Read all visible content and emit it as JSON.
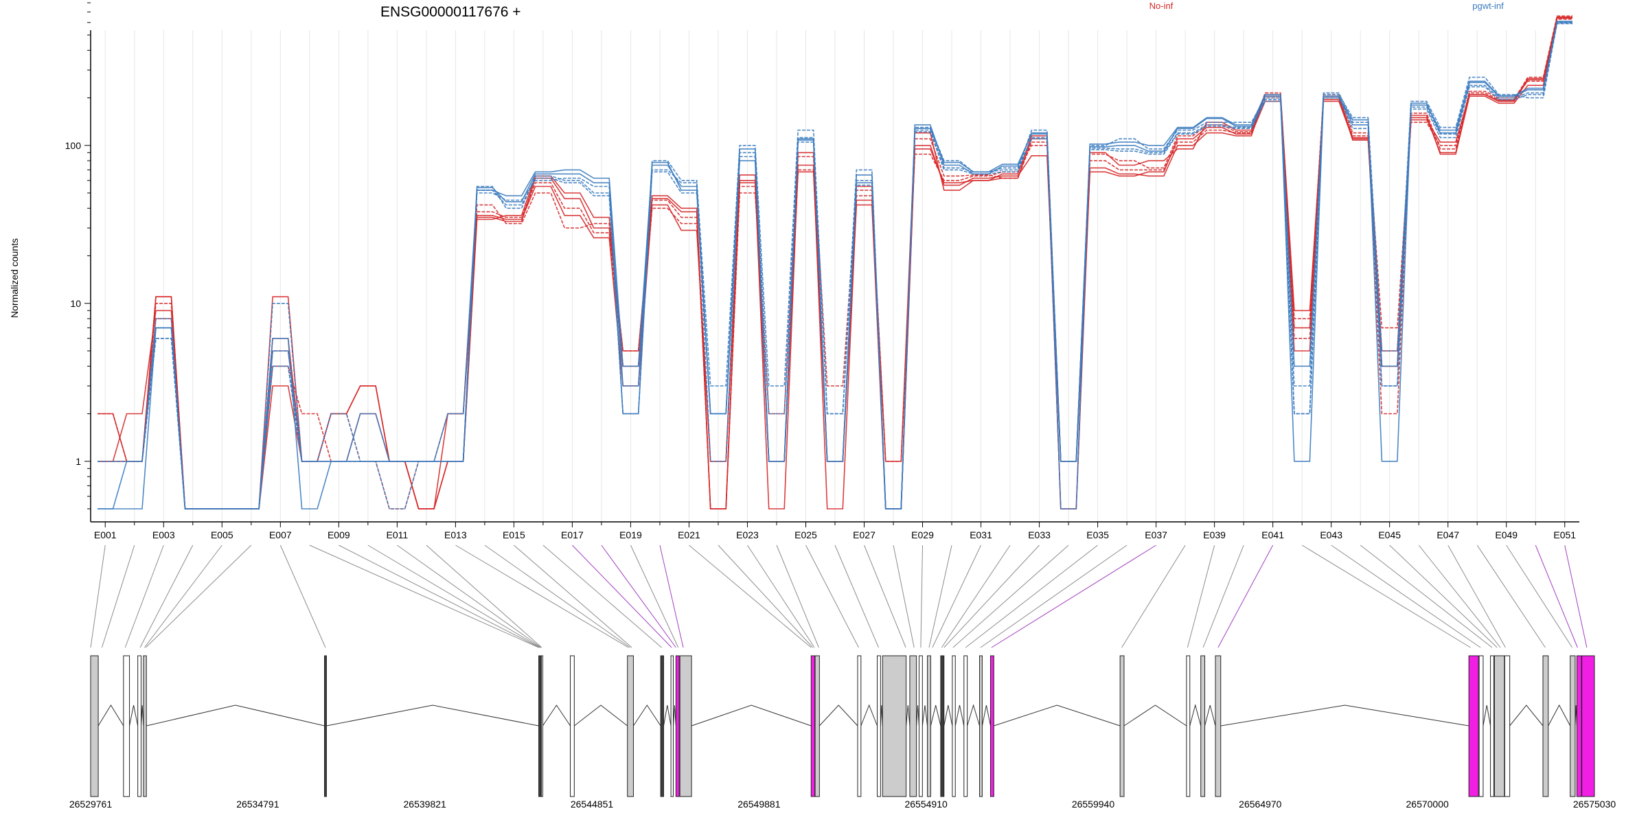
{
  "chart_data": {
    "type": "line",
    "title": "ENSG00000117676 +",
    "ylabel": "Normalized counts",
    "xlabel": "",
    "y_scale": "log",
    "ylim": [
      0.5,
      800
    ],
    "y_ticks": [
      1,
      10,
      100
    ],
    "y_tick_labels": [
      "1",
      "10",
      "100"
    ],
    "legend_position": "top",
    "grid": "vertical light lines at each exon",
    "exons": [
      "E001",
      "E002",
      "E003",
      "E004",
      "E005",
      "E006",
      "E007",
      "E008",
      "E009",
      "E010",
      "E011",
      "E012",
      "E013",
      "E014",
      "E015",
      "E016",
      "E017",
      "E018",
      "E019",
      "E020",
      "E021",
      "E022",
      "E023",
      "E024",
      "E025",
      "E026",
      "E027",
      "E028",
      "E029",
      "E030",
      "E031",
      "E032",
      "E033",
      "E034",
      "E035",
      "E036",
      "E037",
      "E038",
      "E039",
      "E040",
      "E041",
      "E042",
      "E043",
      "E044",
      "E045",
      "E046",
      "E047",
      "E048",
      "E049",
      "E050",
      "E051"
    ],
    "x_tick_labels": [
      "E001",
      "E003",
      "E005",
      "E007",
      "E009",
      "E011",
      "E013",
      "E015",
      "E017",
      "E019",
      "E021",
      "E023",
      "E025",
      "E027",
      "E029",
      "E031",
      "E033",
      "E035",
      "E037",
      "E039",
      "E041",
      "E043",
      "E045",
      "E047",
      "E049",
      "E051"
    ],
    "groups": [
      {
        "name": "No-inf",
        "color": "#d62728"
      },
      {
        "name": "pgwt-inf",
        "color": "#3a7bbf"
      }
    ],
    "series": [
      {
        "group": "No-inf",
        "values": [
          2,
          1,
          11,
          0.5,
          0.5,
          0.5,
          11,
          1,
          2,
          3,
          1,
          0.5,
          2,
          35,
          33,
          62,
          46,
          30,
          5,
          46,
          38,
          0.5,
          60,
          0.5,
          75,
          0.5,
          45,
          1,
          120,
          52,
          60,
          62,
          110,
          0.5,
          72,
          66,
          64,
          100,
          120,
          115,
          210,
          9,
          190,
          110,
          4,
          150,
          90,
          210,
          190,
          260,
          640
        ]
      },
      {
        "group": "No-inf",
        "values": [
          1,
          1,
          10,
          0.5,
          0.5,
          0.5,
          4,
          2,
          1,
          1,
          1,
          1,
          1,
          38,
          35,
          58,
          40,
          28,
          4,
          40,
          32,
          1,
          55,
          1,
          70,
          1,
          48,
          1,
          88,
          60,
          64,
          68,
          100,
          1,
          80,
          70,
          70,
          105,
          125,
          120,
          200,
          6,
          200,
          115,
          7,
          140,
          100,
          215,
          195,
          270,
          660
        ]
      },
      {
        "group": "No-inf",
        "values": [
          1,
          2,
          9,
          0.5,
          0.5,
          0.5,
          3,
          1,
          1,
          2,
          1,
          0.5,
          1,
          36,
          34,
          55,
          36,
          26,
          3,
          42,
          29,
          1,
          65,
          1,
          68,
          1,
          42,
          0.5,
          100,
          56,
          62,
          64,
          86,
          1,
          68,
          64,
          68,
          110,
          130,
          118,
          190,
          5,
          205,
          108,
          4,
          155,
          88,
          205,
          185,
          240,
          650
        ]
      },
      {
        "group": "No-inf",
        "values": [
          2,
          1,
          8,
          0.5,
          0.5,
          0.5,
          5,
          1,
          2,
          1,
          0.5,
          1,
          2,
          42,
          32,
          50,
          30,
          32,
          5,
          45,
          35,
          0.5,
          50,
          2,
          85,
          3,
          52,
          0.5,
          110,
          64,
          65,
          62,
          105,
          0.5,
          88,
          80,
          72,
          115,
          135,
          122,
          215,
          8,
          210,
          120,
          2,
          160,
          95,
          220,
          200,
          255,
          630
        ]
      },
      {
        "group": "No-inf",
        "values": [
          1,
          1,
          11,
          0.5,
          0.5,
          0.5,
          6,
          1,
          2,
          3,
          1,
          0.5,
          1,
          34,
          36,
          64,
          50,
          35,
          4,
          48,
          40,
          0.5,
          58,
          1,
          90,
          1,
          55,
          0.5,
          95,
          58,
          60,
          66,
          115,
          1,
          90,
          75,
          80,
          95,
          140,
          125,
          205,
          7,
          195,
          112,
          5,
          145,
          105,
          210,
          192,
          265,
          640
        ]
      },
      {
        "group": "pgwt-inf",
        "values": [
          1,
          1,
          8,
          0.5,
          0.5,
          0.5,
          10,
          1,
          1,
          1,
          1,
          1,
          1,
          55,
          40,
          64,
          60,
          50,
          2,
          80,
          60,
          3,
          100,
          3,
          125,
          2,
          70,
          0.5,
          130,
          80,
          68,
          70,
          125,
          1,
          100,
          110,
          95,
          125,
          140,
          140,
          200,
          2,
          210,
          150,
          5,
          190,
          130,
          270,
          210,
          200,
          600
        ]
      },
      {
        "group": "pgwt-inf",
        "values": [
          0.5,
          0.5,
          7,
          0.5,
          0.5,
          0.5,
          6,
          0.5,
          1,
          2,
          1,
          1,
          2,
          52,
          48,
          68,
          70,
          62,
          4,
          75,
          55,
          2,
          95,
          1,
          110,
          1,
          65,
          0.5,
          135,
          75,
          66,
          74,
          120,
          0.5,
          102,
          105,
          100,
          130,
          150,
          135,
          210,
          1,
          200,
          145,
          1,
          180,
          125,
          250,
          205,
          225,
          610
        ]
      },
      {
        "group": "pgwt-inf",
        "values": [
          1,
          1,
          6,
          0.5,
          0.5,
          0.5,
          4,
          1,
          2,
          1,
          1,
          1,
          1,
          50,
          45,
          60,
          62,
          55,
          2,
          70,
          58,
          1,
          90,
          2,
          112,
          2,
          60,
          0.5,
          125,
          72,
          68,
          72,
          110,
          1,
          96,
          95,
          90,
          120,
          135,
          130,
          195,
          3,
          215,
          140,
          3,
          175,
          118,
          240,
          200,
          215,
          595
        ]
      },
      {
        "group": "pgwt-inf",
        "values": [
          0.5,
          1,
          7,
          0.5,
          0.5,
          0.5,
          5,
          1,
          1,
          1,
          1,
          1,
          1,
          54,
          44,
          66,
          66,
          58,
          3,
          78,
          52,
          2,
          80,
          1,
          108,
          1,
          58,
          0.5,
          128,
          78,
          68,
          76,
          118,
          1,
          98,
          100,
          92,
          128,
          148,
          132,
          205,
          4,
          205,
          135,
          4,
          185,
          120,
          255,
          206,
          230,
          605
        ]
      },
      {
        "group": "pgwt-inf",
        "values": [
          1,
          1,
          6,
          0.5,
          0.5,
          0.5,
          4,
          1,
          1,
          1,
          0.5,
          1,
          1,
          52,
          42,
          62,
          58,
          48,
          2,
          68,
          50,
          2,
          85,
          1,
          105,
          1,
          56,
          0.5,
          122,
          70,
          66,
          68,
          112,
          1,
          94,
          92,
          88,
          118,
          132,
          128,
          190,
          2,
          200,
          128,
          3,
          170,
          112,
          235,
          195,
          210,
          590
        ]
      }
    ],
    "genomic_axis": {
      "tick_labels": [
        "26529761",
        "26534791",
        "26539821",
        "26544851",
        "26549881",
        "26554910",
        "26559940",
        "26564970",
        "26570000",
        "26575030"
      ],
      "range": [
        26529761,
        26575030
      ]
    },
    "gene_model_exons": [
      {
        "start": 26529761,
        "end": 26529990,
        "fill": "gray"
      },
      {
        "start": 26530750,
        "end": 26530930,
        "fill": "white"
      },
      {
        "start": 26531180,
        "end": 26531280,
        "fill": "white"
      },
      {
        "start": 26531350,
        "end": 26531440,
        "fill": "gray"
      },
      {
        "start": 26536800,
        "end": 26536860,
        "fill": "dark"
      },
      {
        "start": 26543250,
        "end": 26543320,
        "fill": "dark"
      },
      {
        "start": 26543330,
        "end": 26543370,
        "fill": "white"
      },
      {
        "start": 26544200,
        "end": 26544320,
        "fill": "white"
      },
      {
        "start": 26545920,
        "end": 26546100,
        "fill": "gray"
      },
      {
        "start": 26546920,
        "end": 26547010,
        "fill": "dark"
      },
      {
        "start": 26547230,
        "end": 26547300,
        "fill": "white"
      },
      {
        "start": 26547380,
        "end": 26547480,
        "fill": "magenta"
      },
      {
        "start": 26547500,
        "end": 26547850,
        "fill": "gray"
      },
      {
        "start": 26551450,
        "end": 26551560,
        "fill": "magenta"
      },
      {
        "start": 26551570,
        "end": 26551700,
        "fill": "gray"
      },
      {
        "start": 26552850,
        "end": 26552950,
        "fill": "white"
      },
      {
        "start": 26553440,
        "end": 26553540,
        "fill": "white"
      },
      {
        "start": 26553600,
        "end": 26554310,
        "fill": "gray"
      },
      {
        "start": 26554420,
        "end": 26554620,
        "fill": "gray"
      },
      {
        "start": 26554700,
        "end": 26554800,
        "fill": "white"
      },
      {
        "start": 26554950,
        "end": 26555050,
        "fill": "gray"
      },
      {
        "start": 26555350,
        "end": 26555450,
        "fill": "dark"
      },
      {
        "start": 26555700,
        "end": 26555790,
        "fill": "white"
      },
      {
        "start": 26556050,
        "end": 26556150,
        "fill": "white"
      },
      {
        "start": 26556520,
        "end": 26556600,
        "fill": "gray"
      },
      {
        "start": 26556850,
        "end": 26556950,
        "fill": "magenta"
      },
      {
        "start": 26560750,
        "end": 26560870,
        "fill": "gray"
      },
      {
        "start": 26562750,
        "end": 26562850,
        "fill": "white"
      },
      {
        "start": 26563180,
        "end": 26563300,
        "fill": "gray"
      },
      {
        "start": 26563620,
        "end": 26563780,
        "fill": "gray"
      },
      {
        "start": 26571250,
        "end": 26571540,
        "fill": "magenta"
      },
      {
        "start": 26571560,
        "end": 26571680,
        "fill": "white"
      },
      {
        "start": 26571900,
        "end": 26572000,
        "fill": "white"
      },
      {
        "start": 26572020,
        "end": 26572320,
        "fill": "gray"
      },
      {
        "start": 26572330,
        "end": 26572480,
        "fill": "white"
      },
      {
        "start": 26573480,
        "end": 26573640,
        "fill": "gray"
      },
      {
        "start": 26574300,
        "end": 26574450,
        "fill": "gray"
      },
      {
        "start": 26574500,
        "end": 26574640,
        "fill": "magenta"
      },
      {
        "start": 26574650,
        "end": 26575030,
        "fill": "magenta"
      }
    ],
    "connector_exon_pos": [
      26529761,
      26530100,
      26530800,
      26531250,
      26531380,
      26531420,
      26536830,
      26543250,
      26543280,
      26543300,
      26543320,
      26543340,
      26545950,
      26546000,
      26546050,
      26546950,
      26547250,
      26547380,
      26547450,
      26547600,
      26551450,
      26551500,
      26551550,
      26551680,
      26552880,
      26553480,
      26554300,
      26554550,
      26554750,
      26555000,
      26555100,
      26555380,
      26555450,
      26555720,
      26556100,
      26556550,
      26556880,
      26560800,
      26562780,
      26563250,
      26563700,
      26571300,
      26571600,
      26571950,
      26572100,
      26572200,
      26572350,
      26573550,
      26574360,
      26574520,
      26574800
    ],
    "connector_highlight_exons": [
      "E017",
      "E018",
      "E020",
      "E037",
      "E041",
      "E050",
      "E051"
    ]
  }
}
